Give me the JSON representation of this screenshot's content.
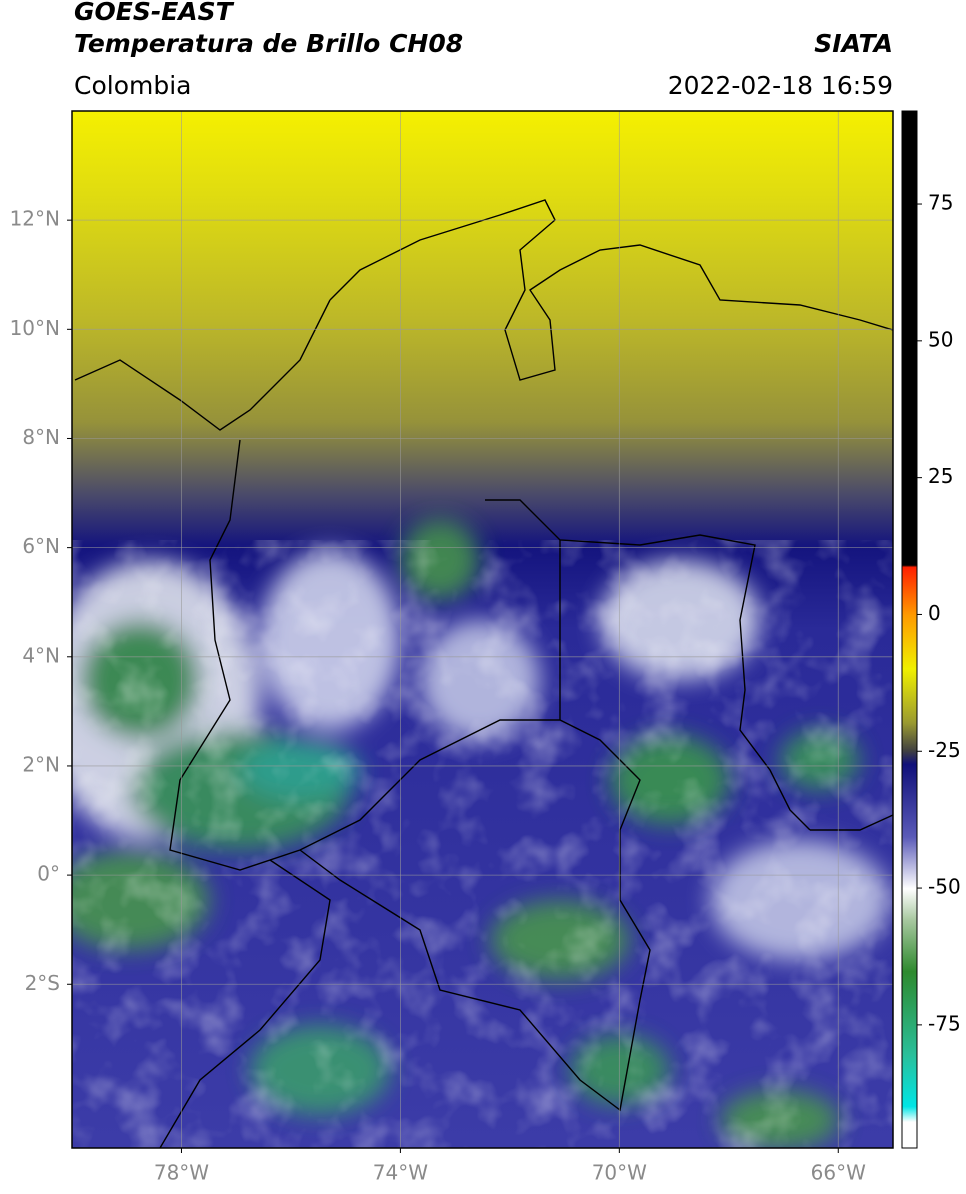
{
  "header": {
    "satellite": "GOES-EAST",
    "product": "Temperatura de Brillo CH08",
    "source": "SIATA",
    "region": "Colombia",
    "datetime": "2022-02-18 16:59"
  },
  "map": {
    "xlim": [
      -80,
      -65
    ],
    "ylim": [
      -5,
      14
    ],
    "grid": true,
    "xticks": [
      {
        "value": -78,
        "label": "78°W"
      },
      {
        "value": -74,
        "label": "74°W"
      },
      {
        "value": -70,
        "label": "70°W"
      },
      {
        "value": -66,
        "label": "66°W"
      }
    ],
    "yticks": [
      {
        "value": 12,
        "label": "12°N"
      },
      {
        "value": 10,
        "label": "10°N"
      },
      {
        "value": 8,
        "label": "8°N"
      },
      {
        "value": 6,
        "label": "6°N"
      },
      {
        "value": 4,
        "label": "4°N"
      },
      {
        "value": 2,
        "label": "2°N"
      },
      {
        "value": 0,
        "label": "0°"
      },
      {
        "value": -2,
        "label": "2°S"
      }
    ]
  },
  "colorbar": {
    "lim": [
      -97.5,
      92
    ],
    "ticks": [
      75,
      50,
      25,
      0,
      -25,
      -50,
      -75
    ]
  }
}
